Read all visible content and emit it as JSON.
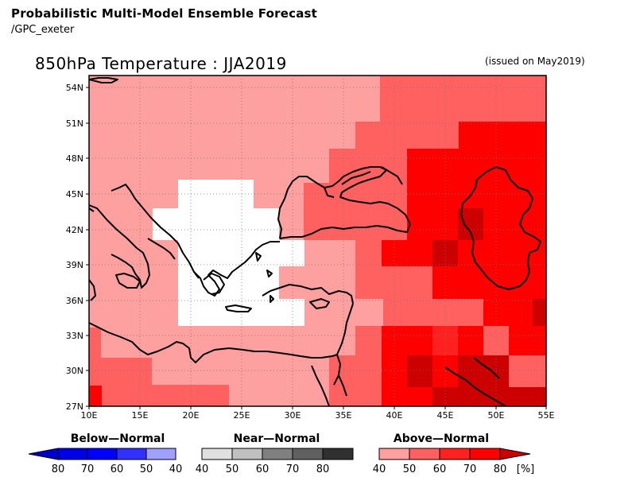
{
  "header": {
    "title": "Probabilistic Multi-Model Ensemble Forecast",
    "subtitle": "/GPC_exeter"
  },
  "map": {
    "title": "850hPa Temperature : JJA2019",
    "issued": "(issued on May2019)",
    "lon_labels": [
      "10E",
      "15E",
      "20E",
      "25E",
      "30E",
      "35E",
      "40E",
      "45E",
      "50E",
      "55E"
    ],
    "lat_labels": [
      "27N",
      "30N",
      "33N",
      "36N",
      "39N",
      "42N",
      "45N",
      "48N",
      "51N",
      "54N"
    ],
    "region": "Eastern Mediterranean / Black Sea / Caspian"
  },
  "colors": {
    "above_40": "#ffa0a0",
    "above_50": "#ff6060",
    "above_60": "#ff2020",
    "above_70": "#ff0000",
    "above_80": "#cc0000",
    "near_normal": "#ffffff",
    "below_scale": [
      "#0000cc",
      "#0000e6",
      "#0000ff",
      "#3030ff",
      "#a0a0ff"
    ],
    "near_scale": [
      "#e0e0e0",
      "#c0c0c0",
      "#808080",
      "#606060",
      "#303030"
    ],
    "above_scale": [
      "#ffa0a0",
      "#ff6060",
      "#ff2020",
      "#ff0000",
      "#cc0000"
    ]
  },
  "legend": {
    "below_title": "Below—Normal",
    "near_title": "Near—Normal",
    "above_title": "Above—Normal",
    "below_ticks": [
      "80",
      "70",
      "60",
      "50",
      "40"
    ],
    "near_ticks": [
      "40",
      "50",
      "60",
      "70",
      "80"
    ],
    "above_ticks": [
      "40",
      "50",
      "60",
      "70",
      "80"
    ],
    "unit": "[%]"
  }
}
